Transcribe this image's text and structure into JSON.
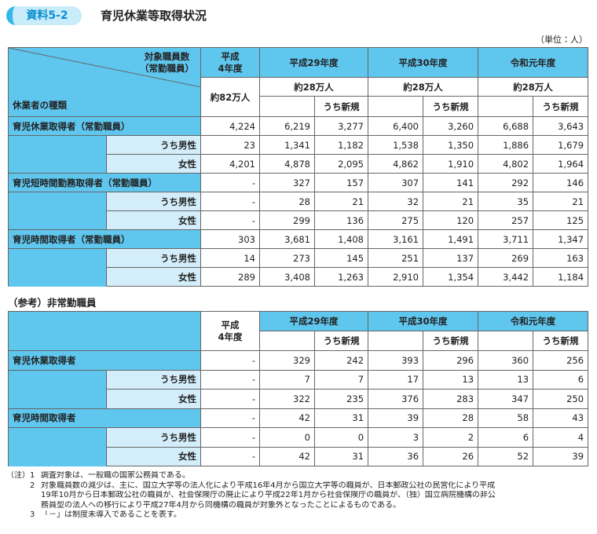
{
  "header": {
    "badge": "資料5-2",
    "title": "育児休業等取得状況",
    "unit": "（単位：人）"
  },
  "table1": {
    "corner_top": [
      "対象職員数",
      "（常勤職員）"
    ],
    "corner_bottom": "休業者の種類",
    "columns": [
      [
        "平成",
        "4年度"
      ],
      "平成29年度",
      "平成30年度",
      "令和元年度"
    ],
    "staff_counts": [
      "約82万人",
      "約28万人",
      "約28万人",
      "約28万人"
    ],
    "sub_headers": [
      "うち新規",
      "うち新規",
      "うち新規"
    ],
    "groups": [
      {
        "label": "育児休業取得者（常勤職員）",
        "values": [
          "4,224",
          "6,219",
          "3,277",
          "6,400",
          "3,260",
          "6,688",
          "3,643"
        ],
        "subrows": [
          {
            "label": "うち男性",
            "values": [
              "23",
              "1,341",
              "1,182",
              "1,538",
              "1,350",
              "1,886",
              "1,679"
            ]
          },
          {
            "label": "女性",
            "values": [
              "4,201",
              "4,878",
              "2,095",
              "4,862",
              "1,910",
              "4,802",
              "1,964"
            ]
          }
        ]
      },
      {
        "label": "育児短時間勤務取得者（常勤職員）",
        "values": [
          "-",
          "327",
          "157",
          "307",
          "141",
          "292",
          "146"
        ],
        "subrows": [
          {
            "label": "うち男性",
            "values": [
              "-",
              "28",
              "21",
              "32",
              "21",
              "35",
              "21"
            ]
          },
          {
            "label": "女性",
            "values": [
              "-",
              "299",
              "136",
              "275",
              "120",
              "257",
              "125"
            ]
          }
        ]
      },
      {
        "label": "育児時間取得者（常勤職員）",
        "values": [
          "303",
          "3,681",
          "1,408",
          "3,161",
          "1,491",
          "3,711",
          "1,347"
        ],
        "subrows": [
          {
            "label": "うち男性",
            "values": [
              "14",
              "273",
              "145",
              "251",
              "137",
              "269",
              "163"
            ]
          },
          {
            "label": "女性",
            "values": [
              "289",
              "3,408",
              "1,263",
              "2,910",
              "1,354",
              "3,442",
              "1,184"
            ]
          }
        ]
      }
    ]
  },
  "table2": {
    "title": "（参考）非常勤職員",
    "columns": [
      [
        "平成",
        "4年度"
      ],
      "平成29年度",
      "平成30年度",
      "令和元年度"
    ],
    "sub_headers": [
      "うち新規",
      "うち新規",
      "うち新規"
    ],
    "groups": [
      {
        "label": "育児休業取得者",
        "values": [
          "-",
          "329",
          "242",
          "393",
          "296",
          "360",
          "256"
        ],
        "subrows": [
          {
            "label": "うち男性",
            "values": [
              "-",
              "7",
              "7",
              "17",
              "13",
              "13",
              "6"
            ]
          },
          {
            "label": "女性",
            "values": [
              "-",
              "322",
              "235",
              "376",
              "283",
              "347",
              "250"
            ]
          }
        ]
      },
      {
        "label": "育児時間取得者",
        "values": [
          "-",
          "42",
          "31",
          "39",
          "28",
          "58",
          "43"
        ],
        "subrows": [
          {
            "label": "うち男性",
            "values": [
              "-",
              "0",
              "0",
              "3",
              "2",
              "6",
              "4"
            ]
          },
          {
            "label": "女性",
            "values": [
              "-",
              "42",
              "31",
              "36",
              "26",
              "52",
              "39"
            ]
          }
        ]
      }
    ]
  },
  "notes": {
    "prefix": "（注）",
    "items": [
      {
        "num": "1",
        "lines": [
          "調査対象は、一般職の国家公務員である。"
        ]
      },
      {
        "num": "2",
        "lines": [
          "対象職員数の減少は、主に、国立大学等の法人化により平成16年4月から国立大学等の職員が、日本郵政公社の民営化により平成",
          "19年10月から日本郵政公社の職員が、社会保険庁の廃止により平成22年1月から社会保険庁の職員が、（独）国立病院機構の非公",
          "務員型の法人への移行により平成27年4月から同機構の職員が対象外となったことによるものである。"
        ]
      },
      {
        "num": "3",
        "lines": [
          "「－」は制度未導入であることを表す。"
        ]
      }
    ]
  }
}
